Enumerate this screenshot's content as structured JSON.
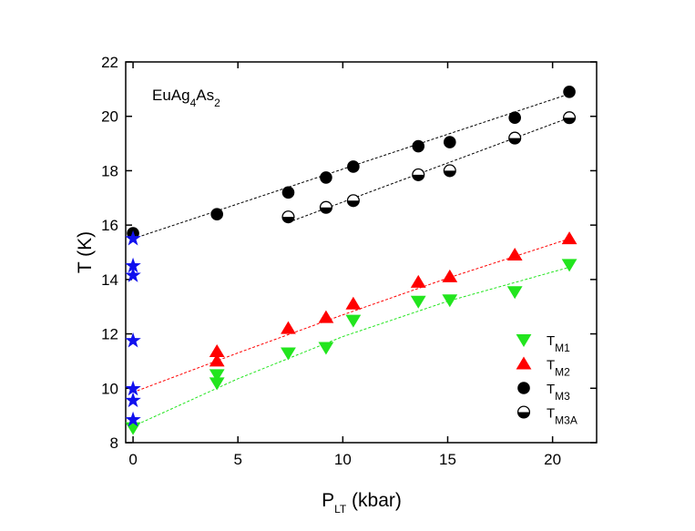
{
  "chart_data": {
    "type": "scatter",
    "annotation": [
      "EuAg",
      "4",
      "As",
      "2"
    ],
    "x_label": [
      "P",
      "LT",
      " (kbar)"
    ],
    "y_label": "T (K)",
    "xlim": [
      -0.35,
      22.1
    ],
    "ylim": [
      8,
      22
    ],
    "xticks": [
      0,
      5,
      10,
      15,
      20
    ],
    "yticks": [
      8,
      10,
      12,
      14,
      16,
      18,
      20,
      22
    ],
    "series": [
      {
        "name": [
          "T",
          "M1"
        ],
        "marker": "triangle-down",
        "color": "#22e51e",
        "x": [
          0,
          4.0,
          4.0,
          7.4,
          9.2,
          10.5,
          13.6,
          15.1,
          18.2,
          20.8
        ],
        "values": [
          8.55,
          10.5,
          10.2,
          11.3,
          11.5,
          12.5,
          13.2,
          13.25,
          13.55,
          14.55
        ]
      },
      {
        "name": [
          "T",
          "M2"
        ],
        "marker": "triangle-up",
        "color": "#ff0000",
        "x": [
          4.0,
          4.0,
          7.4,
          9.2,
          10.5,
          13.6,
          15.1,
          18.2,
          20.8
        ],
        "values": [
          11.35,
          11.0,
          12.2,
          12.6,
          13.1,
          13.9,
          14.1,
          14.9,
          15.5
        ]
      },
      {
        "name": [
          "T",
          "M3"
        ],
        "marker": "circle",
        "color": "#000000",
        "x": [
          0,
          4.0,
          7.4,
          9.2,
          10.5,
          13.6,
          15.1,
          18.2,
          20.8
        ],
        "values": [
          15.7,
          16.4,
          17.2,
          17.75,
          18.15,
          18.9,
          19.05,
          19.95,
          20.9
        ]
      },
      {
        "name": [
          "T",
          "M3A"
        ],
        "marker": "half-circle",
        "color": "#000000",
        "x": [
          7.4,
          9.2,
          10.5,
          13.6,
          15.1,
          18.2,
          20.8
        ],
        "values": [
          16.3,
          16.65,
          16.9,
          17.85,
          18.0,
          19.2,
          19.95
        ]
      },
      {
        "marker": "star",
        "color": "#1010ee",
        "x": [
          0,
          0,
          0,
          0,
          0,
          0,
          0
        ],
        "values": [
          15.5,
          14.5,
          14.15,
          11.75,
          9.98,
          9.55,
          8.84
        ]
      }
    ],
    "fit_lines": [
      {
        "color": "#000000",
        "x": [
          0,
          20.9
        ],
        "values": [
          15.5,
          20.85
        ]
      },
      {
        "color": "#000000",
        "x": [
          7.4,
          20.8
        ],
        "values": [
          16.1,
          19.95
        ]
      },
      {
        "color": "#ff0000",
        "x": [
          0,
          5,
          10,
          15,
          20.8
        ],
        "values": [
          9.85,
          11.3,
          12.7,
          14.05,
          15.5
        ]
      },
      {
        "color": "#22e51e",
        "x": [
          0,
          5,
          10,
          15,
          20.8
        ],
        "values": [
          8.6,
          10.35,
          11.9,
          13.2,
          14.45
        ]
      }
    ]
  }
}
